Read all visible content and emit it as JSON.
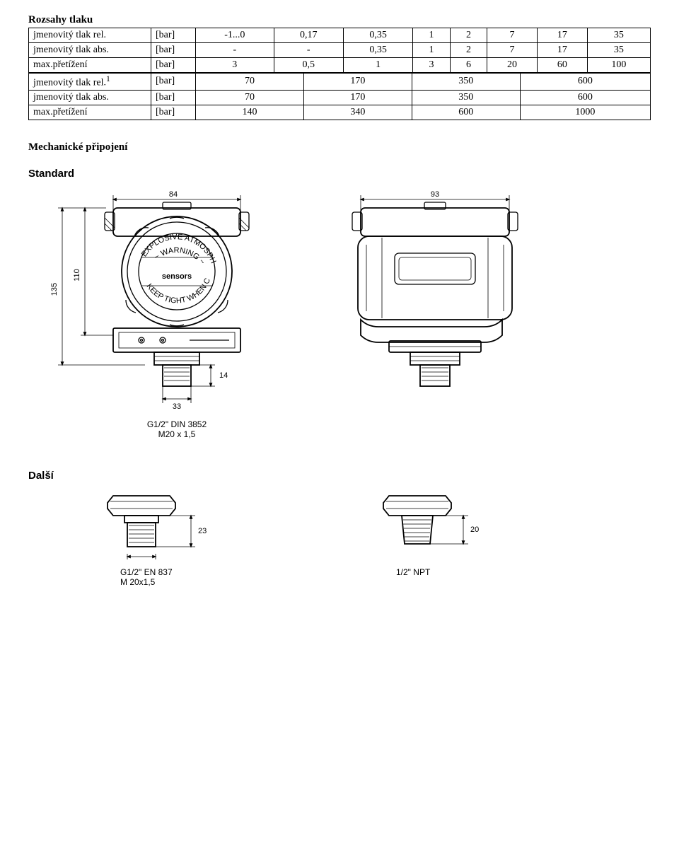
{
  "title": "Rozsahy tlaku",
  "table1": {
    "rows": [
      {
        "label": "jmenovitý tlak rel.",
        "unit": "[bar]",
        "cells": [
          "-1...0",
          "0,17",
          "0,35",
          "1",
          "2",
          "7",
          "17",
          "35"
        ]
      },
      {
        "label": "jmenovitý tlak abs.",
        "unit": "[bar]",
        "cells": [
          "-",
          "-",
          "0,35",
          "1",
          "2",
          "7",
          "17",
          "35"
        ]
      },
      {
        "label": "max.přetížení",
        "unit": "[bar]",
        "cells": [
          "3",
          "0,5",
          "1",
          "3",
          "6",
          "20",
          "60",
          "100"
        ]
      }
    ]
  },
  "table2": {
    "rows": [
      {
        "label_html": "jmenovitý tlak rel.<sup>1</sup>",
        "unit": "[bar]",
        "cells": [
          "70",
          "170",
          "350",
          "600"
        ]
      },
      {
        "label": "jmenovitý tlak abs.",
        "unit": "[bar]",
        "cells": [
          "70",
          "170",
          "350",
          "600"
        ]
      },
      {
        "label": "max.přetížení",
        "unit": "[bar]",
        "cells": [
          "140",
          "340",
          "600",
          "1000"
        ]
      }
    ]
  },
  "section": "Mechanické připojení",
  "variants": {
    "std": "Standard",
    "other": "Další"
  },
  "dims": {
    "front_w": "84",
    "side_w": "93",
    "body_h": "135",
    "face_h": "110",
    "stem_h": "14",
    "stem_w": "33"
  },
  "threads": {
    "front": [
      "G1/2\" DIN 3852",
      "M20 x 1,5"
    ],
    "conn_left": [
      "G1/2\" EN 837",
      "M 20x1,5"
    ],
    "conn_right": "1/2\" NPT",
    "conn_left_dim": "23",
    "conn_right_dim": "20"
  }
}
